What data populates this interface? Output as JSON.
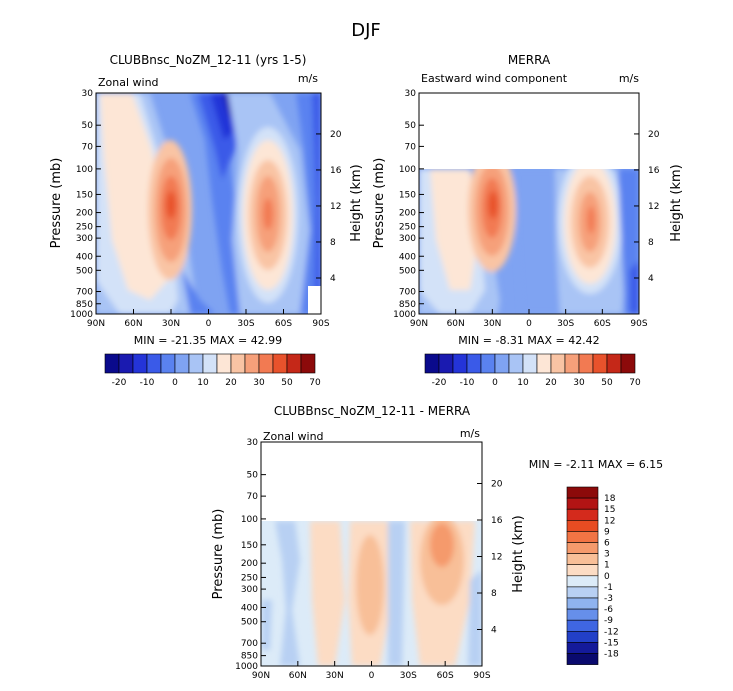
{
  "figure_title": "DJF",
  "panels": [
    {
      "title": "CLUBBnsc_NoZM_12-11 (yrs 1-5)",
      "left_label": "Zonal wind",
      "right_label": "m/s",
      "stats": "MIN = -21.35   MAX =  42.99",
      "colorbar_labels": [
        "-20",
        "-10",
        "0",
        "10",
        "20",
        "30",
        "50",
        "70"
      ]
    },
    {
      "title": "MERRA",
      "left_label": "Eastward wind component",
      "right_label": "m/s",
      "stats": "MIN =  -8.31   MAX =  42.42",
      "colorbar_labels": [
        "-20",
        "-10",
        "0",
        "10",
        "20",
        "30",
        "50",
        "70"
      ]
    },
    {
      "title": "CLUBBnsc_NoZM_12-11 - MERRA",
      "left_label": "Zonal wind",
      "right_label": "m/s",
      "stats": "MIN =  -2.11   MAX =   6.15",
      "colorbar_labels": [
        "18",
        "15",
        "12",
        "9",
        "6",
        "3",
        "1",
        "0",
        "-1",
        "-3",
        "-6",
        "-9",
        "-12",
        "-15",
        "-18"
      ]
    }
  ],
  "axes": {
    "ylabel": "Pressure (mb)",
    "ylabel_right": "Height (km)",
    "pressure_ticks": [
      "30",
      "50",
      "70",
      "100",
      "150",
      "200",
      "250",
      "300",
      "400",
      "500",
      "700",
      "850",
      "1000"
    ],
    "height_ticks": [
      "4",
      "8",
      "12",
      "16",
      "20"
    ],
    "lat_ticks": [
      "90N",
      "60N",
      "30N",
      "0",
      "30S",
      "60S",
      "90S"
    ]
  },
  "colors": {
    "abs_scale": [
      "#0a0a8c",
      "#1a1ab0",
      "#2434d8",
      "#3a5ae8",
      "#5a82f0",
      "#7fa3f2",
      "#a9c4f5",
      "#d3e2f8",
      "#fde6d6",
      "#f9c4a4",
      "#f6a07a",
      "#f27a52",
      "#e8522c",
      "#c52818",
      "#8c0a0a"
    ],
    "diff_scale": [
      "#8c0a0a",
      "#b21414",
      "#d42a1c",
      "#e84c22",
      "#f27444",
      "#f59a6c",
      "#f8bf98",
      "#fcdcc4",
      "#dcebf8",
      "#b8d0f3",
      "#8fb3ef",
      "#668fea",
      "#3f66e2",
      "#2240c8",
      "#141a9a",
      "#0a0a6e"
    ]
  },
  "chart_data": [
    {
      "type": "heatmap",
      "title": "CLUBBnsc_NoZM_12-11 (yrs 1-5)",
      "variable": "Zonal wind",
      "units": "m/s",
      "x_ticks": [
        "90N",
        "60N",
        "30N",
        "0",
        "30S",
        "60S",
        "90S"
      ],
      "ylabel": "Pressure (mb)",
      "ylim": [
        1000,
        30
      ],
      "levels": [
        -20,
        -15,
        -10,
        -5,
        0,
        5,
        10,
        15,
        20,
        25,
        30,
        40,
        50,
        60,
        70
      ],
      "min": -21.35,
      "max": 42.99,
      "jets": [
        {
          "lat": 30,
          "pressure": 200,
          "value": 43
        },
        {
          "lat": -45,
          "pressure": 200,
          "value": 32
        }
      ],
      "minimum": {
        "lat": -15,
        "pressure": 30,
        "value": -21
      }
    },
    {
      "type": "heatmap",
      "title": "MERRA",
      "variable": "Eastward wind component",
      "units": "m/s",
      "x_ticks": [
        "90N",
        "60N",
        "30N",
        "0",
        "30S",
        "60S",
        "90S"
      ],
      "ylabel": "Pressure (mb)",
      "ylim": [
        1000,
        30
      ],
      "data_top_pressure": 100,
      "levels": [
        -20,
        -15,
        -10,
        -5,
        0,
        5,
        10,
        15,
        20,
        25,
        30,
        40,
        50,
        60,
        70
      ],
      "min": -8.31,
      "max": 42.42,
      "jets": [
        {
          "lat": 30,
          "pressure": 200,
          "value": 42
        },
        {
          "lat": -45,
          "pressure": 250,
          "value": 31
        }
      ]
    },
    {
      "type": "heatmap",
      "title": "CLUBBnsc_NoZM_12-11 - MERRA",
      "variable": "Zonal wind",
      "units": "m/s",
      "x_ticks": [
        "90N",
        "60N",
        "30N",
        "0",
        "30S",
        "60S",
        "90S"
      ],
      "ylabel": "Pressure (mb)",
      "ylim": [
        1000,
        30
      ],
      "data_top_pressure": 100,
      "levels": [
        -18,
        -15,
        -12,
        -9,
        -6,
        -3,
        -1,
        0,
        1,
        3,
        6,
        9,
        12,
        15,
        18
      ],
      "min": -2.11,
      "max": 6.15
    }
  ]
}
